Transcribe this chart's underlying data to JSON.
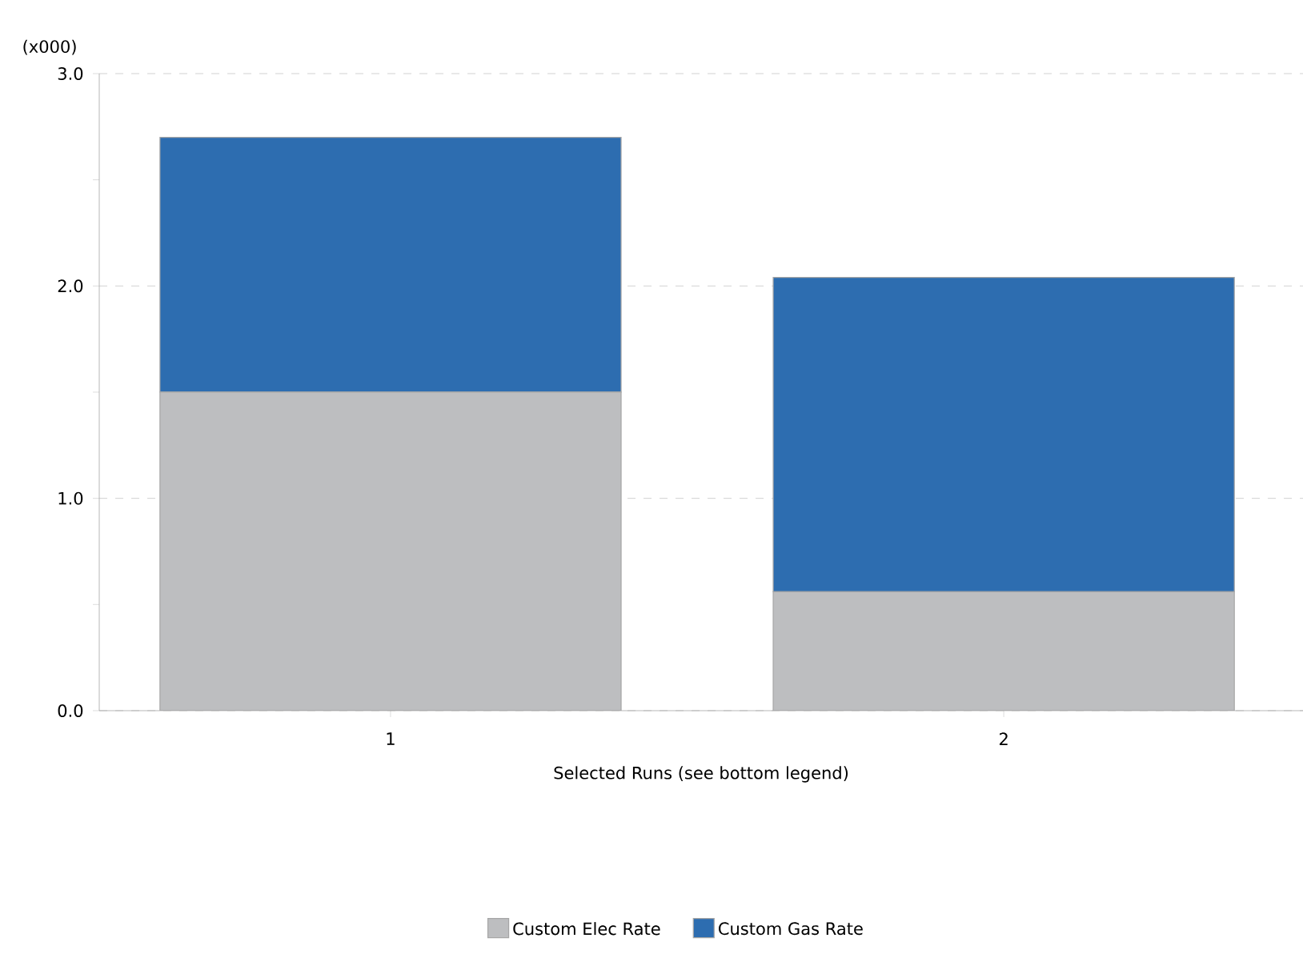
{
  "chart_data": {
    "type": "bar",
    "stacked": true,
    "categories": [
      "1",
      "2"
    ],
    "xlabel": "Selected Runs (see bottom legend)",
    "ylabel": "(x000)",
    "series": [
      {
        "name": "Custom Elec Rate",
        "color": "#bdbec0",
        "values": [
          1.5,
          0.56
        ]
      },
      {
        "name": "Custom Gas Rate",
        "color": "#2d6db0",
        "values": [
          1.2,
          1.48
        ]
      }
    ],
    "ylim": [
      0,
      3
    ],
    "yticks": [
      {
        "value": 0,
        "label": "0.0"
      },
      {
        "value": 0.5,
        "label": null
      },
      {
        "value": 1,
        "label": "1.0"
      },
      {
        "value": 1.5,
        "label": null
      },
      {
        "value": 2,
        "label": "2.0"
      },
      {
        "value": 2.5,
        "label": null
      },
      {
        "value": 3,
        "label": "3.0"
      }
    ],
    "grid": "y",
    "legend": "bottom"
  }
}
